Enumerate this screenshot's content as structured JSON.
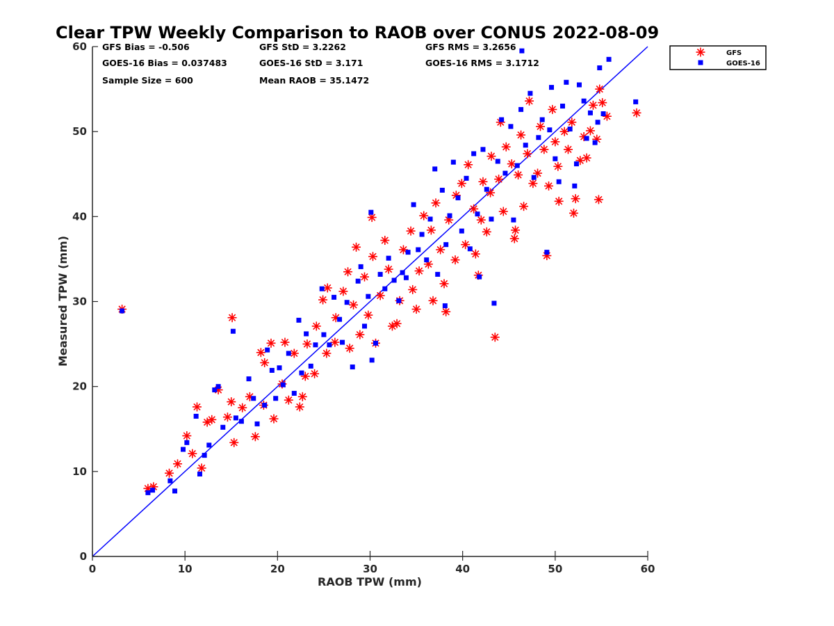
{
  "chart_data": {
    "type": "scatter",
    "title": "Clear TPW Weekly Comparison to RAOB over CONUS 2022-08-09",
    "xlabel": "RAOB TPW (mm)",
    "ylabel": "Measured TPW (mm)",
    "xlim": [
      0,
      60
    ],
    "ylim": [
      0,
      60
    ],
    "xticks": [
      "0",
      "10",
      "20",
      "30",
      "40",
      "50",
      "60"
    ],
    "yticks": [
      "0",
      "10",
      "20",
      "30",
      "40",
      "50",
      "60"
    ],
    "grid": false,
    "legend_position": "top-right outside",
    "reference_line": {
      "type": "one-to-one",
      "color": "#0000ff"
    },
    "stats": {
      "gfs_bias": "GFS Bias = -0.506",
      "goes_bias": "GOES-16 Bias = 0.037483",
      "sample_size": "Sample Size = 600",
      "gfs_std": "GFS StD = 3.2262",
      "goes_std": "GOES-16 StD = 3.171",
      "mean_raob": "Mean RAOB = 35.1472",
      "gfs_rms": "GFS RMS = 3.2656",
      "goes_rms": "GOES-16 RMS = 3.1712"
    },
    "series": [
      {
        "name": "GFS",
        "marker": "asterisk",
        "color": "#ff0000",
        "points": [
          [
            3.2,
            29.1
          ],
          [
            6,
            8
          ],
          [
            6.6,
            8.2
          ],
          [
            8.3,
            9.8
          ],
          [
            9.2,
            10.9
          ],
          [
            10.2,
            14.2
          ],
          [
            10.8,
            12.1
          ],
          [
            11.3,
            17.6
          ],
          [
            11.8,
            10.4
          ],
          [
            12.4,
            15.8
          ],
          [
            12.9,
            16.1
          ],
          [
            13.6,
            19.6
          ],
          [
            14.6,
            16.4
          ],
          [
            15.1,
            28.1
          ],
          [
            15.0,
            18.2
          ],
          [
            15.3,
            13.4
          ],
          [
            16.2,
            17.5
          ],
          [
            17.6,
            14.1
          ],
          [
            17.0,
            18.8
          ],
          [
            18.2,
            24.0
          ],
          [
            18.5,
            17.8
          ],
          [
            18.6,
            22.8
          ],
          [
            19.3,
            25.1
          ],
          [
            19.6,
            16.2
          ],
          [
            20.5,
            20.3
          ],
          [
            20.8,
            25.2
          ],
          [
            21.2,
            18.4
          ],
          [
            21.8,
            23.9
          ],
          [
            22.4,
            17.6
          ],
          [
            22.7,
            18.8
          ],
          [
            23.0,
            21.2
          ],
          [
            23.2,
            25.0
          ],
          [
            24.0,
            21.5
          ],
          [
            24.2,
            27.1
          ],
          [
            24.9,
            30.2
          ],
          [
            25.3,
            23.9
          ],
          [
            25.4,
            31.6
          ],
          [
            26.2,
            25.2
          ],
          [
            26.3,
            28.1
          ],
          [
            27.1,
            31.2
          ],
          [
            27.6,
            33.5
          ],
          [
            27.8,
            24.5
          ],
          [
            28.2,
            29.6
          ],
          [
            28.5,
            36.4
          ],
          [
            28.9,
            26.1
          ],
          [
            29.4,
            32.9
          ],
          [
            29.8,
            28.4
          ],
          [
            30.2,
            39.9
          ],
          [
            30.3,
            35.3
          ],
          [
            30.6,
            25.1
          ],
          [
            31.1,
            30.7
          ],
          [
            31.6,
            37.2
          ],
          [
            32.0,
            33.8
          ],
          [
            32.4,
            27.1
          ],
          [
            32.9,
            27.4
          ],
          [
            33.2,
            30.1
          ],
          [
            33.6,
            36.1
          ],
          [
            34.4,
            38.3
          ],
          [
            34.6,
            31.4
          ],
          [
            35.0,
            29.1
          ],
          [
            35.3,
            33.6
          ],
          [
            35.8,
            40.1
          ],
          [
            36.3,
            34.4
          ],
          [
            36.6,
            38.4
          ],
          [
            36.8,
            30.1
          ],
          [
            37.1,
            41.6
          ],
          [
            37.6,
            36.1
          ],
          [
            38.0,
            32.1
          ],
          [
            38.2,
            28.8
          ],
          [
            38.5,
            39.6
          ],
          [
            39.2,
            34.9
          ],
          [
            39.3,
            42.5
          ],
          [
            39.9,
            43.9
          ],
          [
            40.3,
            36.7
          ],
          [
            40.6,
            46.1
          ],
          [
            41.2,
            40.9
          ],
          [
            41.4,
            35.6
          ],
          [
            41.7,
            33.1
          ],
          [
            42.0,
            39.6
          ],
          [
            42.2,
            44.1
          ],
          [
            42.6,
            38.2
          ],
          [
            43.0,
            42.8
          ],
          [
            43.1,
            47.1
          ],
          [
            43.5,
            25.8
          ],
          [
            43.9,
            44.4
          ],
          [
            44.1,
            51.1
          ],
          [
            44.4,
            40.6
          ],
          [
            44.7,
            48.2
          ],
          [
            45.3,
            46.2
          ],
          [
            45.6,
            37.4
          ],
          [
            45.7,
            38.4
          ],
          [
            46.0,
            44.9
          ],
          [
            46.3,
            49.6
          ],
          [
            46.6,
            41.2
          ],
          [
            47.0,
            47.4
          ],
          [
            47.2,
            53.6
          ],
          [
            47.6,
            43.9
          ],
          [
            48.1,
            45.1
          ],
          [
            48.4,
            50.6
          ],
          [
            48.8,
            47.9
          ],
          [
            49.1,
            35.4
          ],
          [
            49.3,
            43.6
          ],
          [
            49.7,
            52.6
          ],
          [
            50.0,
            48.8
          ],
          [
            50.3,
            45.9
          ],
          [
            50.4,
            41.8
          ],
          [
            51.0,
            50.0
          ],
          [
            51.4,
            47.9
          ],
          [
            51.8,
            51.1
          ],
          [
            52.0,
            40.4
          ],
          [
            52.2,
            42.1
          ],
          [
            52.7,
            46.6
          ],
          [
            53.1,
            49.4
          ],
          [
            53.4,
            46.9
          ],
          [
            53.8,
            50.1
          ],
          [
            54.1,
            53.1
          ],
          [
            54.5,
            49.1
          ],
          [
            54.7,
            42.0
          ],
          [
            54.8,
            55.0
          ],
          [
            55.1,
            53.4
          ],
          [
            55.6,
            51.8
          ],
          [
            58.8,
            52.2
          ]
        ]
      },
      {
        "name": "GOES-16",
        "marker": "square",
        "color": "#0000ff",
        "points": [
          [
            3.2,
            28.9
          ],
          [
            6,
            7.5
          ],
          [
            6.5,
            7.8
          ],
          [
            8.4,
            8.9
          ],
          [
            8.9,
            7.7
          ],
          [
            9.8,
            12.6
          ],
          [
            10.2,
            13.4
          ],
          [
            11.2,
            16.5
          ],
          [
            11.6,
            9.7
          ],
          [
            12.1,
            11.9
          ],
          [
            12.6,
            13.1
          ],
          [
            13.2,
            19.6
          ],
          [
            13.6,
            20.0
          ],
          [
            14.1,
            15.2
          ],
          [
            15.2,
            26.5
          ],
          [
            15.5,
            16.3
          ],
          [
            16.1,
            15.9
          ],
          [
            16.9,
            20.9
          ],
          [
            17.4,
            18.6
          ],
          [
            17.8,
            15.6
          ],
          [
            18.6,
            17.8
          ],
          [
            18.9,
            24.3
          ],
          [
            19.4,
            21.9
          ],
          [
            19.8,
            18.6
          ],
          [
            20.2,
            22.2
          ],
          [
            20.6,
            20.2
          ],
          [
            21.2,
            23.9
          ],
          [
            21.8,
            19.2
          ],
          [
            22.3,
            27.8
          ],
          [
            22.6,
            21.6
          ],
          [
            23.1,
            26.2
          ],
          [
            23.6,
            22.4
          ],
          [
            24.1,
            24.9
          ],
          [
            24.8,
            31.5
          ],
          [
            25.0,
            26.1
          ],
          [
            25.6,
            24.9
          ],
          [
            26.1,
            30.5
          ],
          [
            26.7,
            27.9
          ],
          [
            27.0,
            25.2
          ],
          [
            27.5,
            29.9
          ],
          [
            28.1,
            22.3
          ],
          [
            28.7,
            32.4
          ],
          [
            29.0,
            34.1
          ],
          [
            29.4,
            27.1
          ],
          [
            29.8,
            30.6
          ],
          [
            30.1,
            40.5
          ],
          [
            30.2,
            23.1
          ],
          [
            30.6,
            25.1
          ],
          [
            31.1,
            33.2
          ],
          [
            31.6,
            31.5
          ],
          [
            32.0,
            35.1
          ],
          [
            32.6,
            32.5
          ],
          [
            33.1,
            30.1
          ],
          [
            33.5,
            33.4
          ],
          [
            33.9,
            32.8
          ],
          [
            34.1,
            35.8
          ],
          [
            34.7,
            41.4
          ],
          [
            35.2,
            36.1
          ],
          [
            35.6,
            37.9
          ],
          [
            36.1,
            34.9
          ],
          [
            36.5,
            39.7
          ],
          [
            37.0,
            45.6
          ],
          [
            37.3,
            33.2
          ],
          [
            37.8,
            43.1
          ],
          [
            38.1,
            29.5
          ],
          [
            38.2,
            36.7
          ],
          [
            38.6,
            40.1
          ],
          [
            39.0,
            46.4
          ],
          [
            39.5,
            42.2
          ],
          [
            39.9,
            38.3
          ],
          [
            40.4,
            44.5
          ],
          [
            40.8,
            36.2
          ],
          [
            41.2,
            47.4
          ],
          [
            41.6,
            40.3
          ],
          [
            41.8,
            32.9
          ],
          [
            42.2,
            47.9
          ],
          [
            42.6,
            43.2
          ],
          [
            43.1,
            39.7
          ],
          [
            43.4,
            29.8
          ],
          [
            43.8,
            46.5
          ],
          [
            44.2,
            51.4
          ],
          [
            44.6,
            45.1
          ],
          [
            45.2,
            50.6
          ],
          [
            45.5,
            39.6
          ],
          [
            45.9,
            46.0
          ],
          [
            46.3,
            52.6
          ],
          [
            46.4,
            59.5
          ],
          [
            46.8,
            48.4
          ],
          [
            47.3,
            54.5
          ],
          [
            47.7,
            44.6
          ],
          [
            48.2,
            49.3
          ],
          [
            48.6,
            51.4
          ],
          [
            49.1,
            35.8
          ],
          [
            49.4,
            50.2
          ],
          [
            49.6,
            55.2
          ],
          [
            50.0,
            46.8
          ],
          [
            50.4,
            44.1
          ],
          [
            50.8,
            53.0
          ],
          [
            51.2,
            55.8
          ],
          [
            51.6,
            50.3
          ],
          [
            52.1,
            43.6
          ],
          [
            52.3,
            46.2
          ],
          [
            52.6,
            55.5
          ],
          [
            53.1,
            53.6
          ],
          [
            53.4,
            49.2
          ],
          [
            53.8,
            52.2
          ],
          [
            54.3,
            48.7
          ],
          [
            54.6,
            51.1
          ],
          [
            54.8,
            57.5
          ],
          [
            55.2,
            52.1
          ],
          [
            55.8,
            58.5
          ],
          [
            58.7,
            53.5
          ]
        ]
      }
    ]
  }
}
